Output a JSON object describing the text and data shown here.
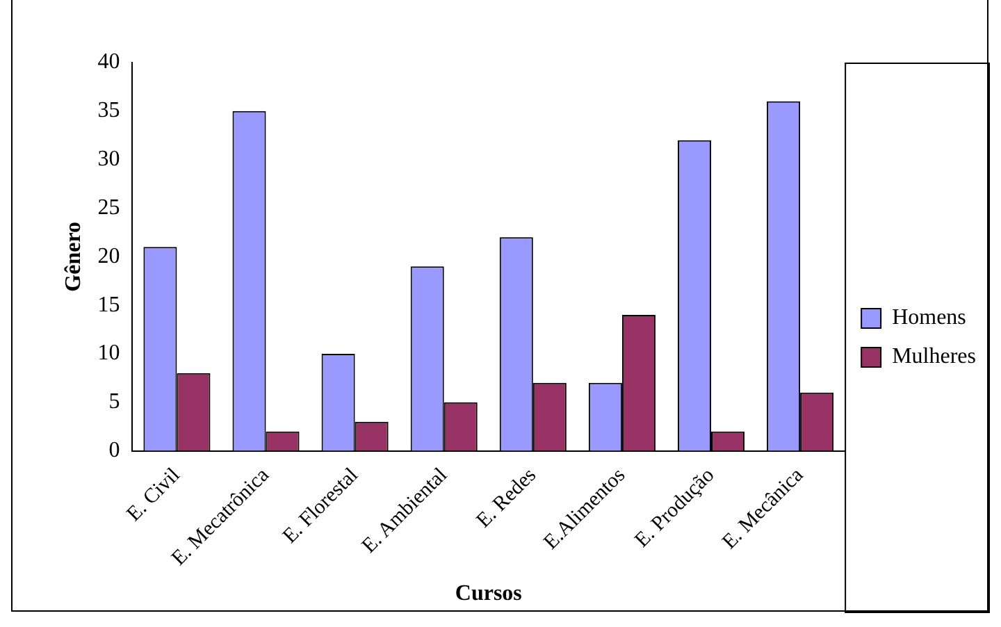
{
  "chart_data": {
    "type": "bar",
    "xlabel": "Cursos",
    "ylabel": "Gênero",
    "categories": [
      "E. Civil",
      "E. Mecatrônica",
      "E. Florestal",
      "E. Ambiental",
      "E. Redes",
      "E.Alimentos",
      "E. Produção",
      "E. Mecânica"
    ],
    "series": [
      {
        "name": "Homens",
        "color": "#9999ff",
        "values": [
          21,
          35,
          10,
          19,
          22,
          7,
          32,
          36
        ]
      },
      {
        "name": "Mulheres",
        "color": "#993366",
        "values": [
          8,
          2,
          3,
          5,
          7,
          14,
          2,
          6
        ]
      }
    ],
    "ylim": [
      0,
      40
    ],
    "yticks": [
      0,
      5,
      10,
      15,
      20,
      25,
      30,
      35,
      40
    ],
    "grid": false,
    "legend": "right"
  }
}
